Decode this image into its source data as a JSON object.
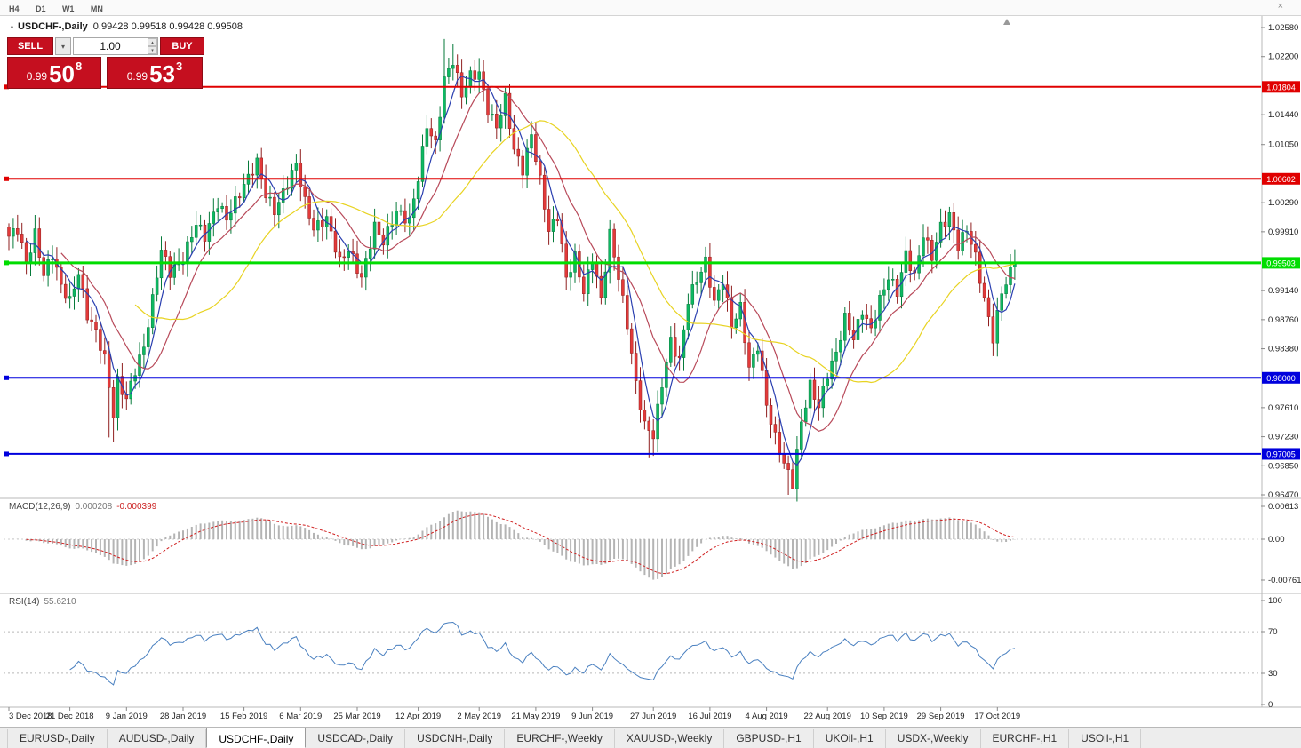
{
  "toolbar": {
    "timeframes": [
      "H4",
      "D1",
      "W1",
      "MN"
    ],
    "close_icon": "×"
  },
  "chart_header": {
    "collapse_icon": "▲",
    "symbol_title": "USDCHF-,Daily",
    "ohlc": "0.99428 0.99518 0.99428 0.99508"
  },
  "trade_panel": {
    "sell_label": "SELL",
    "buy_label": "BUY",
    "volume": "1.00",
    "dropdown_icon": "▾",
    "stepper_up": "▴",
    "stepper_down": "▾",
    "sell_price": {
      "prefix": "0.99",
      "big": "50",
      "sup": "8"
    },
    "buy_price": {
      "prefix": "0.99",
      "big": "53",
      "sup": "3"
    }
  },
  "indicators": {
    "macd": {
      "label": "MACD(12,26,9)",
      "main_value": "0.000208",
      "signal_value": "-0.000399",
      "axis_labels": [
        "0.00613",
        "0.00",
        "-0.00761"
      ]
    },
    "rsi": {
      "label": "RSI(14)",
      "value": "55.6210",
      "axis_labels": [
        "100",
        "70",
        "30",
        "0"
      ]
    }
  },
  "chart_data": {
    "type": "candlestick",
    "symbol": "USDCHF",
    "timeframe": "Daily",
    "price_range": {
      "min": 0.9647,
      "max": 1.0258
    },
    "y_ticks": [
      1.0258,
      1.022,
      1.0144,
      1.0105,
      1.0029,
      0.9991,
      0.9914,
      0.9876,
      0.9838,
      0.9761,
      0.9723,
      0.9685,
      0.9647
    ],
    "levels": [
      {
        "price": 1.01804,
        "label": "1.01804",
        "color": "#e00000",
        "width": 2
      },
      {
        "price": 1.00602,
        "label": "1.00602",
        "color": "#e00000",
        "width": 2
      },
      {
        "price": 0.99503,
        "label": "0.99503",
        "color": "#00dd00",
        "width": 3
      },
      {
        "price": 0.98,
        "label": "0.98000",
        "color": "#0000dd",
        "width": 2
      },
      {
        "price": 0.97005,
        "label": "0.97005",
        "color": "#0000dd",
        "width": 2
      }
    ],
    "x_ticks": [
      [
        0,
        "3 Dec 2018"
      ],
      [
        14,
        "21 Dec 2018"
      ],
      [
        27,
        "9 Jan 2019"
      ],
      [
        40,
        "28 Jan 2019"
      ],
      [
        54,
        "15 Feb 2019"
      ],
      [
        67,
        "6 Mar 2019"
      ],
      [
        80,
        "25 Mar 2019"
      ],
      [
        94,
        "12 Apr 2019"
      ],
      [
        108,
        "2 May 2019"
      ],
      [
        121,
        "21 May 2019"
      ],
      [
        134,
        "9 Jun 2019"
      ],
      [
        148,
        "27 Jun 2019"
      ],
      [
        161,
        "16 Jul 2019"
      ],
      [
        174,
        "4 Aug 2019"
      ],
      [
        188,
        "22 Aug 2019"
      ],
      [
        201,
        "10 Sep 2019"
      ],
      [
        214,
        "29 Sep 2019"
      ],
      [
        227,
        "17 Oct 2019"
      ]
    ],
    "bars_total": 232,
    "close_path": [
      [
        0,
        0.9985
      ],
      [
        2,
        0.9995
      ],
      [
        4,
        0.995
      ],
      [
        6,
        0.9988
      ],
      [
        8,
        0.9935
      ],
      [
        10,
        0.9962
      ],
      [
        12,
        0.992
      ],
      [
        14,
        0.99
      ],
      [
        16,
        0.9938
      ],
      [
        18,
        0.9882
      ],
      [
        20,
        0.986
      ],
      [
        22,
        0.9825
      ],
      [
        24,
        0.9752
      ],
      [
        25,
        0.9795
      ],
      [
        27,
        0.9772
      ],
      [
        29,
        0.981
      ],
      [
        31,
        0.984
      ],
      [
        33,
        0.9902
      ],
      [
        35,
        0.9968
      ],
      [
        37,
        0.9938
      ],
      [
        40,
        0.9956
      ],
      [
        43,
        1.0002
      ],
      [
        45,
        0.9985
      ],
      [
        48,
        1.0028
      ],
      [
        50,
        1.0008
      ],
      [
        54,
        1.0052
      ],
      [
        57,
        1.0082
      ],
      [
        59,
        1.004
      ],
      [
        61,
        1.0018
      ],
      [
        63,
        1.0042
      ],
      [
        66,
        1.008
      ],
      [
        68,
        1.003
      ],
      [
        70,
        0.9995
      ],
      [
        73,
        1.0008
      ],
      [
        76,
        0.9952
      ],
      [
        78,
        0.9968
      ],
      [
        81,
        0.993
      ],
      [
        84,
        0.9998
      ],
      [
        86,
        0.9978
      ],
      [
        89,
        1.0018
      ],
      [
        92,
        1.0005
      ],
      [
        94,
        1.0062
      ],
      [
        96,
        1.013
      ],
      [
        98,
        1.0105
      ],
      [
        100,
        1.019
      ],
      [
        102,
        1.0215
      ],
      [
        104,
        1.017
      ],
      [
        106,
        1.0195
      ],
      [
        108,
        1.0198
      ],
      [
        110,
        1.015
      ],
      [
        112,
        1.0128
      ],
      [
        114,
        1.0165
      ],
      [
        116,
        1.0098
      ],
      [
        118,
        1.0072
      ],
      [
        120,
        1.0118
      ],
      [
        122,
        1.0058
      ],
      [
        124,
        0.9992
      ],
      [
        126,
        1.0012
      ],
      [
        128,
        0.993
      ],
      [
        130,
        0.9958
      ],
      [
        132,
        0.9912
      ],
      [
        134,
        0.9958
      ],
      [
        136,
        0.9902
      ],
      [
        138,
        0.9988
      ],
      [
        140,
        0.9932
      ],
      [
        142,
        0.987
      ],
      [
        144,
        0.9792
      ],
      [
        146,
        0.9738
      ],
      [
        148,
        0.9725
      ],
      [
        150,
        0.9792
      ],
      [
        152,
        0.9848
      ],
      [
        154,
        0.9822
      ],
      [
        156,
        0.9902
      ],
      [
        158,
        0.9928
      ],
      [
        160,
        0.9952
      ],
      [
        162,
        0.9898
      ],
      [
        164,
        0.9928
      ],
      [
        166,
        0.9868
      ],
      [
        168,
        0.9892
      ],
      [
        170,
        0.9812
      ],
      [
        172,
        0.9842
      ],
      [
        174,
        0.9765
      ],
      [
        176,
        0.9722
      ],
      [
        178,
        0.9688
      ],
      [
        180,
        0.9662
      ],
      [
        182,
        0.9742
      ],
      [
        184,
        0.979
      ],
      [
        186,
        0.9762
      ],
      [
        188,
        0.9805
      ],
      [
        190,
        0.9832
      ],
      [
        192,
        0.9878
      ],
      [
        194,
        0.9852
      ],
      [
        196,
        0.9888
      ],
      [
        198,
        0.9862
      ],
      [
        200,
        0.9902
      ],
      [
        202,
        0.9932
      ],
      [
        204,
        0.9912
      ],
      [
        206,
        0.9962
      ],
      [
        208,
        0.9932
      ],
      [
        210,
        0.9988
      ],
      [
        212,
        0.9958
      ],
      [
        214,
        0.9998
      ],
      [
        216,
        1.0012
      ],
      [
        218,
        0.9972
      ],
      [
        220,
        0.9995
      ],
      [
        222,
        0.9958
      ],
      [
        224,
        0.9902
      ],
      [
        226,
        0.9852
      ],
      [
        228,
        0.9912
      ],
      [
        230,
        0.9938
      ],
      [
        231,
        0.9951
      ]
    ],
    "wick_events": [
      {
        "i": 23,
        "low": 0.9722
      },
      {
        "i": 24,
        "low": 0.9716
      },
      {
        "i": 100,
        "high": 1.0243
      },
      {
        "i": 102,
        "high": 1.0236
      },
      {
        "i": 147,
        "low": 0.9696
      },
      {
        "i": 148,
        "low": 0.9698
      },
      {
        "i": 179,
        "low": 0.9647
      },
      {
        "i": 180,
        "low": 0.9656
      }
    ],
    "moving_averages": [
      {
        "period": 5,
        "color": "#2a3fb0"
      },
      {
        "period": 13,
        "color": "#b84a5a"
      },
      {
        "period": 30,
        "color": "#e8d322"
      }
    ],
    "candle_up_color": "#0eb863",
    "candle_down_color": "#e33a3a",
    "macd_scale_max": 0.00613,
    "macd_scale_min": -0.00761,
    "rsi_current": 55.621
  },
  "tabs": [
    {
      "label": "EURUSD-,Daily",
      "active": false
    },
    {
      "label": "AUDUSD-,Daily",
      "active": false
    },
    {
      "label": "USDCHF-,Daily",
      "active": true
    },
    {
      "label": "USDCAD-,Daily",
      "active": false
    },
    {
      "label": "USDCNH-,Daily",
      "active": false
    },
    {
      "label": "EURCHF-,Weekly",
      "active": false
    },
    {
      "label": "XAUUSD-,Weekly",
      "active": false
    },
    {
      "label": "GBPUSD-,H1",
      "active": false
    },
    {
      "label": "UKOil-,H1",
      "active": false
    },
    {
      "label": "USDX-,Weekly",
      "active": false
    },
    {
      "label": "EURCHF-,H1",
      "active": false
    },
    {
      "label": "USOil-,H1",
      "active": false
    }
  ]
}
